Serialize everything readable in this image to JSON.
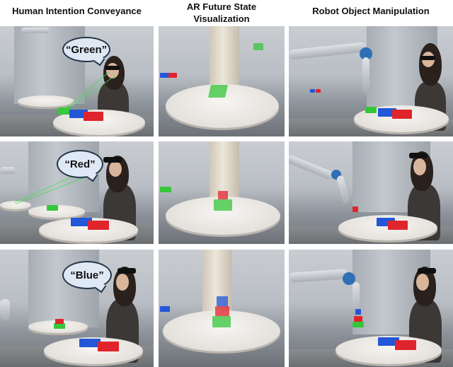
{
  "headers": {
    "col1": "Human Intention Conveyance",
    "col2_line1": "AR Future State",
    "col2_line2": "Visualization",
    "col3": "Robot Object Manipulation"
  },
  "speech_bubbles": [
    "“Green”",
    "“Red”",
    "“Blue”"
  ],
  "colors": {
    "green_block": "#35c63a",
    "red_block": "#e0242c",
    "blue_block": "#2356d8",
    "bubble_fill": "#dfe9f5"
  }
}
